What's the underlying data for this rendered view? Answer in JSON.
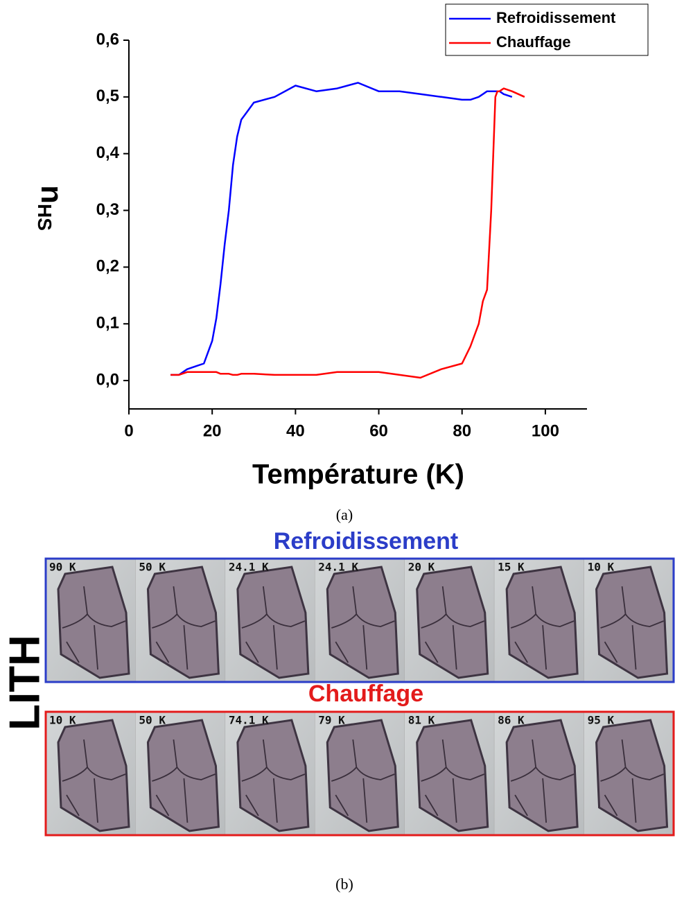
{
  "chart_data": {
    "type": "line",
    "x_label": "Température (K)",
    "y_label": {
      "main": "n",
      "sub": "HS"
    },
    "x": [
      10,
      12,
      14,
      16,
      18,
      20,
      21,
      22,
      23,
      24,
      25,
      26,
      27,
      28,
      30,
      35,
      40,
      45,
      50,
      55,
      60,
      65,
      70,
      75,
      80,
      82,
      84,
      85,
      86,
      87,
      88,
      88.5,
      89,
      90,
      92,
      95
    ],
    "series": [
      {
        "name": "Refroidissement",
        "color": "#0000ff",
        "values": [
          0.01,
          0.01,
          0.02,
          0.025,
          0.03,
          0.07,
          0.11,
          0.17,
          0.24,
          0.3,
          0.38,
          0.43,
          0.46,
          0.47,
          0.49,
          0.5,
          0.52,
          0.51,
          0.515,
          0.525,
          0.51,
          0.51,
          0.505,
          0.5,
          0.495,
          0.495,
          0.5,
          0.505,
          0.51,
          0.51,
          0.51,
          0.51,
          0.51,
          0.505,
          0.5,
          null
        ]
      },
      {
        "name": "Chauffage",
        "color": "#ff0000",
        "values": [
          0.01,
          0.01,
          0.015,
          0.015,
          0.015,
          0.015,
          0.015,
          0.012,
          0.012,
          0.012,
          0.01,
          0.01,
          0.012,
          0.012,
          0.012,
          0.01,
          0.01,
          0.01,
          0.015,
          0.015,
          0.015,
          0.01,
          0.005,
          0.02,
          0.03,
          0.06,
          0.1,
          0.14,
          0.16,
          0.3,
          0.5,
          0.51,
          0.51,
          0.515,
          0.51,
          0.5
        ]
      }
    ],
    "xlim": [
      0,
      110
    ],
    "xticks": [
      0,
      20,
      40,
      60,
      80,
      100
    ],
    "ylim": [
      -0.05,
      0.6
    ],
    "yticks": [
      {
        "value": 0,
        "label": "0,0"
      },
      {
        "value": 0.1,
        "label": "0,1"
      },
      {
        "value": 0.2,
        "label": "0,2"
      },
      {
        "value": 0.3,
        "label": "0,3"
      },
      {
        "value": 0.4,
        "label": "0,4"
      },
      {
        "value": 0.5,
        "label": "0,5"
      },
      {
        "value": 0.6,
        "label": "0,6"
      }
    ],
    "legend": "top-right",
    "grid": false
  },
  "caption_a": "(a)",
  "panel_b": {
    "side_label": "LITH",
    "rows": [
      {
        "title": "Refroidissement",
        "color": "#2b3dc8",
        "frames": [
          "90 K",
          "50 K",
          "24.1 K",
          "24.1 K",
          "20 K",
          "15 K",
          "10 K"
        ]
      },
      {
        "title": "Chauffage",
        "color": "#e31b1b",
        "frames": [
          "10 K",
          "50 K",
          "74.1 K",
          "79 K",
          "81 K",
          "86 K",
          "95 K"
        ]
      }
    ],
    "caption": "(b)"
  }
}
